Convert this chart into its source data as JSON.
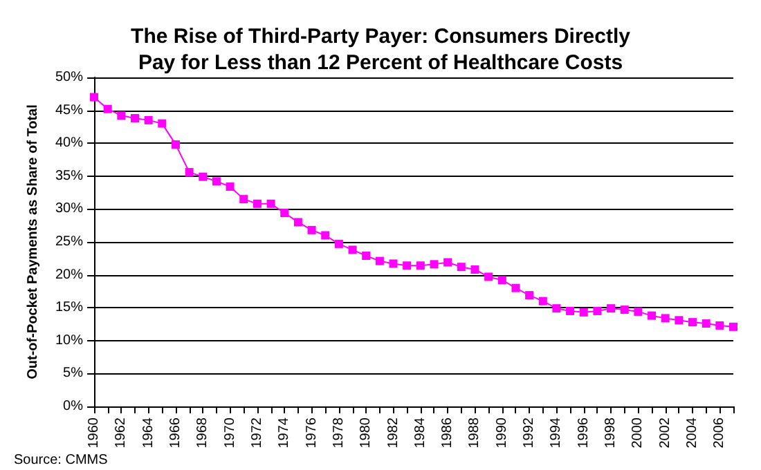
{
  "chart_data": {
    "type": "line",
    "title": "The Rise of Third-Party Payer: Consumers Directly\nPay for Less than 12 Percent of Healthcare Costs",
    "ylabel": "Out-of-Pocket Payments as Share of Total",
    "annotations": [
      "Source: CMMS"
    ],
    "categories": [
      "1960",
      null,
      "1962",
      null,
      "1964",
      null,
      "1966",
      null,
      "1968",
      null,
      "1970",
      null,
      "1972",
      null,
      "1974",
      null,
      "1976",
      null,
      "1978",
      null,
      "1980",
      null,
      "1982",
      null,
      "1984",
      null,
      "1986",
      null,
      "1988",
      null,
      "1990",
      null,
      "1992",
      null,
      "1994",
      null,
      "1996",
      null,
      "1998",
      null,
      "2000",
      null,
      "2002",
      null,
      "2004",
      null,
      "2006",
      null
    ],
    "series": [
      {
        "color": "#ff00ff",
        "values": [
          47,
          45.2,
          44.2,
          43.8,
          43.5,
          43,
          39.8,
          35.6,
          34.9,
          34.2,
          33.4,
          31.5,
          30.8,
          30.8,
          29.4,
          28,
          26.8,
          26,
          24.7,
          23.8,
          22.9,
          22.1,
          21.7,
          21.4,
          21.4,
          21.6,
          21.9,
          21.2,
          20.8,
          19.7,
          19.2,
          18,
          16.9,
          16,
          14.9,
          14.5,
          14.3,
          14.5,
          14.9,
          14.7,
          14.4,
          13.8,
          13.4,
          13.1,
          12.8,
          12.6,
          12.3,
          12.1
        ]
      }
    ],
    "ylim": [
      0,
      50
    ],
    "yticks": [
      {
        "value": 0,
        "label": "0%"
      },
      {
        "value": 5,
        "label": "5%"
      },
      {
        "value": 10,
        "label": "10%"
      },
      {
        "value": 15,
        "label": "15%"
      },
      {
        "value": 20,
        "label": "20%"
      },
      {
        "value": 25,
        "label": "25%"
      },
      {
        "value": 30,
        "label": "30%"
      },
      {
        "value": 35,
        "label": "35%"
      },
      {
        "value": 40,
        "label": "40%"
      },
      {
        "value": 45,
        "label": "45%"
      },
      {
        "value": 50,
        "label": "50%"
      }
    ],
    "grid": "y",
    "marker": "square",
    "line_style": "solid"
  }
}
